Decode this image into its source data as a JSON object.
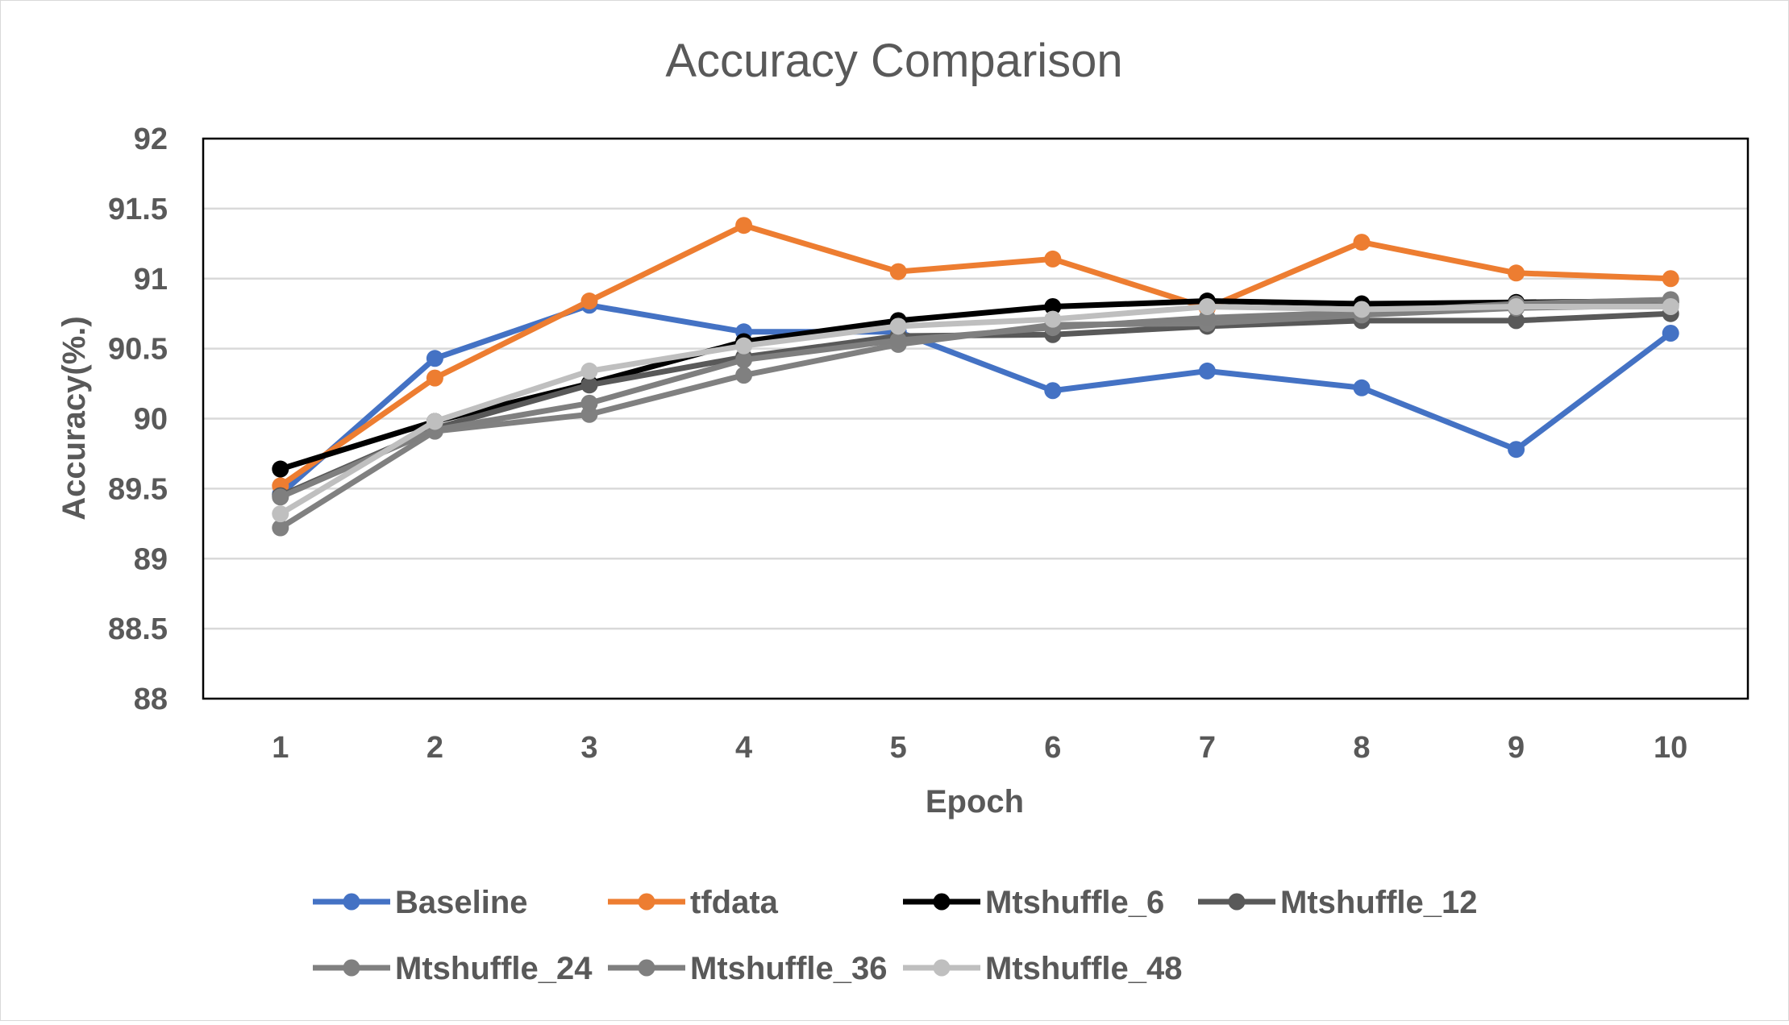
{
  "chart_data": {
    "type": "line",
    "title": "Accuracy Comparison",
    "xlabel": "Epoch",
    "ylabel": "Accuracy(%.)",
    "categories": [
      "1",
      "2",
      "3",
      "4",
      "5",
      "6",
      "7",
      "8",
      "9",
      "10"
    ],
    "ylim": [
      88,
      92
    ],
    "yticks": [
      "88",
      "88.5",
      "89",
      "89.5",
      "90",
      "90.5",
      "91",
      "91.5",
      "92"
    ],
    "grid": true,
    "legend_position": "bottom",
    "series": [
      {
        "name": "Baseline",
        "color": "#4472C4",
        "values": [
          89.46,
          90.43,
          90.81,
          90.62,
          90.62,
          90.2,
          90.34,
          90.22,
          89.78,
          90.61
        ]
      },
      {
        "name": "tfdata",
        "color": "#ED7D31",
        "values": [
          89.52,
          90.29,
          90.84,
          91.38,
          91.05,
          91.14,
          90.79,
          91.26,
          91.04,
          91.0
        ]
      },
      {
        "name": "Mtshuffle_6",
        "color": "#000000",
        "values": [
          89.64,
          89.98,
          90.25,
          90.55,
          90.7,
          90.8,
          90.84,
          90.82,
          90.83,
          90.84
        ]
      },
      {
        "name": "Mtshuffle_12",
        "color": "#595959",
        "values": [
          89.45,
          89.93,
          90.24,
          90.44,
          90.59,
          90.6,
          90.66,
          90.7,
          90.7,
          90.75
        ]
      },
      {
        "name": "Mtshuffle_24",
        "color": "#808080",
        "values": [
          89.22,
          89.91,
          90.03,
          90.31,
          90.53,
          90.67,
          90.68,
          90.74,
          90.79,
          90.81
        ]
      },
      {
        "name": "Mtshuffle_36",
        "color": "#7F7F7F",
        "values": [
          89.44,
          89.92,
          90.11,
          90.42,
          90.56,
          90.65,
          90.72,
          90.76,
          90.82,
          90.85
        ]
      },
      {
        "name": "Mtshuffle_48",
        "color": "#BFBFBF",
        "values": [
          89.32,
          89.98,
          90.34,
          90.52,
          90.66,
          90.71,
          90.8,
          90.78,
          90.8,
          90.8
        ]
      }
    ]
  }
}
